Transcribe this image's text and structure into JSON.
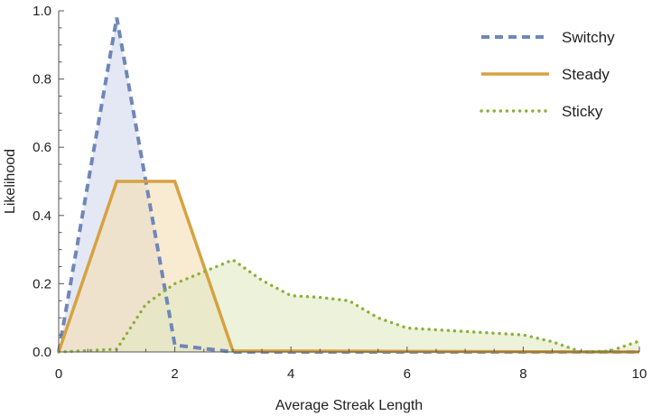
{
  "chart_data": {
    "type": "area",
    "title": "",
    "xlabel": "Average Streak Length",
    "ylabel": "Likelihood",
    "xlim": [
      0,
      10
    ],
    "ylim": [
      0,
      1.0
    ],
    "xticks": [
      0,
      2,
      4,
      6,
      8,
      10
    ],
    "yticks": [
      0.0,
      0.2,
      0.4,
      0.6,
      0.8,
      1.0
    ],
    "xtick_labels": [
      "0",
      "2",
      "4",
      "6",
      "8",
      "10"
    ],
    "ytick_labels": [
      "0.0",
      "0.2",
      "0.4",
      "0.6",
      "0.8",
      "1.0"
    ],
    "grid": false,
    "legend_position": "top-right",
    "series": [
      {
        "name": "Switchy",
        "line_style": "dashed",
        "color": "#6f87b8",
        "fill_color": "#d3daee",
        "x": [
          0,
          1,
          2,
          3,
          10
        ],
        "y": [
          0.0,
          0.98,
          0.02,
          0.0,
          0.0
        ]
      },
      {
        "name": "Steady",
        "line_style": "solid",
        "color": "#d6a241",
        "fill_color": "#f3dfb5",
        "x": [
          0,
          1,
          2,
          3,
          10
        ],
        "y": [
          0.0,
          0.5,
          0.5,
          0.003,
          0.0
        ]
      },
      {
        "name": "Sticky",
        "line_style": "dotted",
        "color": "#8faf3b",
        "fill_color": "#e2eac5",
        "x": [
          0,
          1,
          1.5,
          2,
          2.5,
          3,
          3.5,
          4,
          4.5,
          5,
          5.5,
          6,
          6.5,
          7,
          7.5,
          8,
          8.5,
          9,
          9.5,
          10
        ],
        "y": [
          0.0,
          0.008,
          0.14,
          0.2,
          0.235,
          0.27,
          0.21,
          0.165,
          0.16,
          0.15,
          0.1,
          0.07,
          0.065,
          0.06,
          0.055,
          0.05,
          0.03,
          0.0,
          0.003,
          0.032
        ]
      }
    ]
  }
}
